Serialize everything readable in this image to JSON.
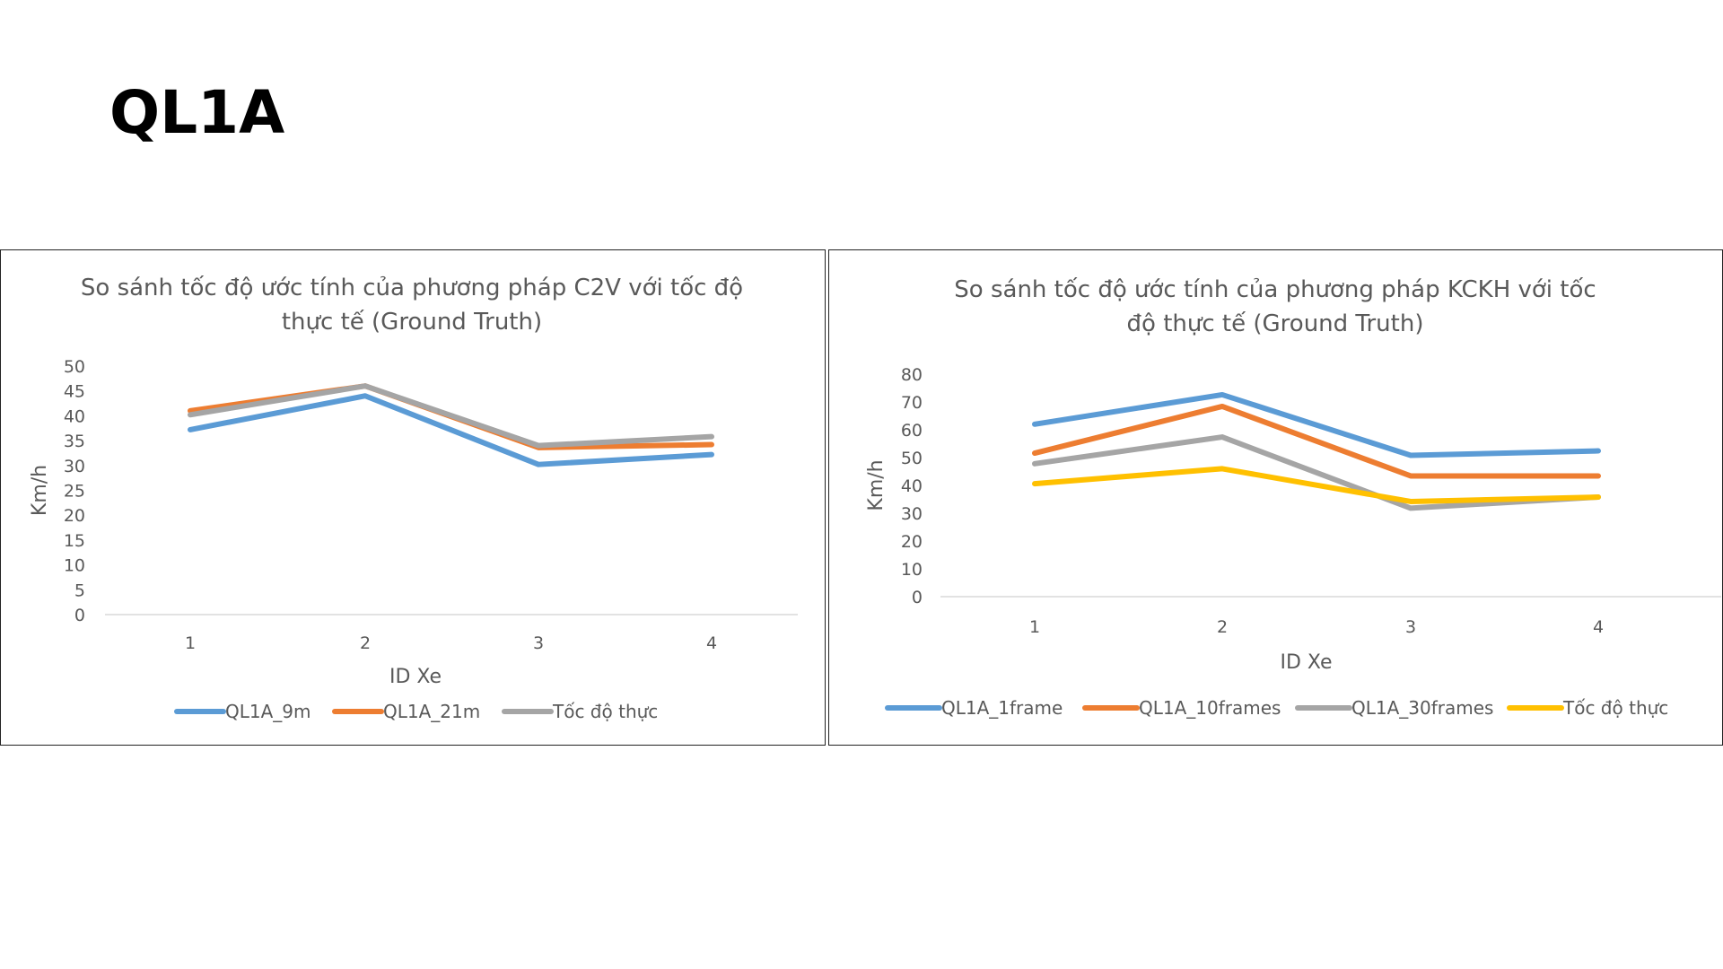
{
  "slide": {
    "title": "QL1A"
  },
  "chart_data": [
    {
      "type": "line",
      "title": [
        "So sánh tốc độ ước tính của phương pháp C2V với tốc độ",
        "thực tế (Ground Truth)"
      ],
      "xlabel": "ID Xe",
      "ylabel": "Km/h",
      "categories": [
        "1",
        "2",
        "3",
        "4"
      ],
      "ylim": [
        0,
        50
      ],
      "yticks": [
        0,
        5,
        10,
        15,
        20,
        25,
        30,
        35,
        40,
        45,
        50
      ],
      "grid": "none",
      "legend": "bottom",
      "series": [
        {
          "name": "QL1A_9m",
          "color": "#5B9BD5",
          "values": [
            37.2,
            44,
            30.2,
            32.2
          ]
        },
        {
          "name": "QL1A_21m",
          "color": "#ED7D31",
          "values": [
            41,
            46,
            33.6,
            34.2
          ]
        },
        {
          "name": "Tốc độ thực",
          "color": "#A5A5A5",
          "values": [
            40.2,
            46,
            34,
            35.8
          ]
        }
      ]
    },
    {
      "type": "line",
      "title": [
        "So sánh tốc độ ước tính của phương pháp KCKH với tốc",
        "độ thực tế (Ground Truth)"
      ],
      "xlabel": "ID Xe",
      "ylabel": "Km/h",
      "categories": [
        "1",
        "2",
        "3",
        "4"
      ],
      "ylim": [
        0,
        80
      ],
      "yticks": [
        0,
        10,
        20,
        30,
        40,
        50,
        60,
        70,
        80
      ],
      "grid": "none",
      "legend": "bottom",
      "series": [
        {
          "name": "QL1A_1frame",
          "color": "#5B9BD5",
          "values": [
            62,
            72.6,
            50.8,
            52.4
          ]
        },
        {
          "name": "QL1A_10frames",
          "color": "#ED7D31",
          "values": [
            51.6,
            68.4,
            43.4,
            43.4
          ]
        },
        {
          "name": "QL1A_30frames",
          "color": "#A5A5A5",
          "values": [
            47.8,
            57.4,
            31.8,
            35.8
          ]
        },
        {
          "name": "Tốc độ thực",
          "color": "#FFC000",
          "values": [
            40.6,
            46,
            34.2,
            35.8
          ]
        }
      ]
    }
  ]
}
